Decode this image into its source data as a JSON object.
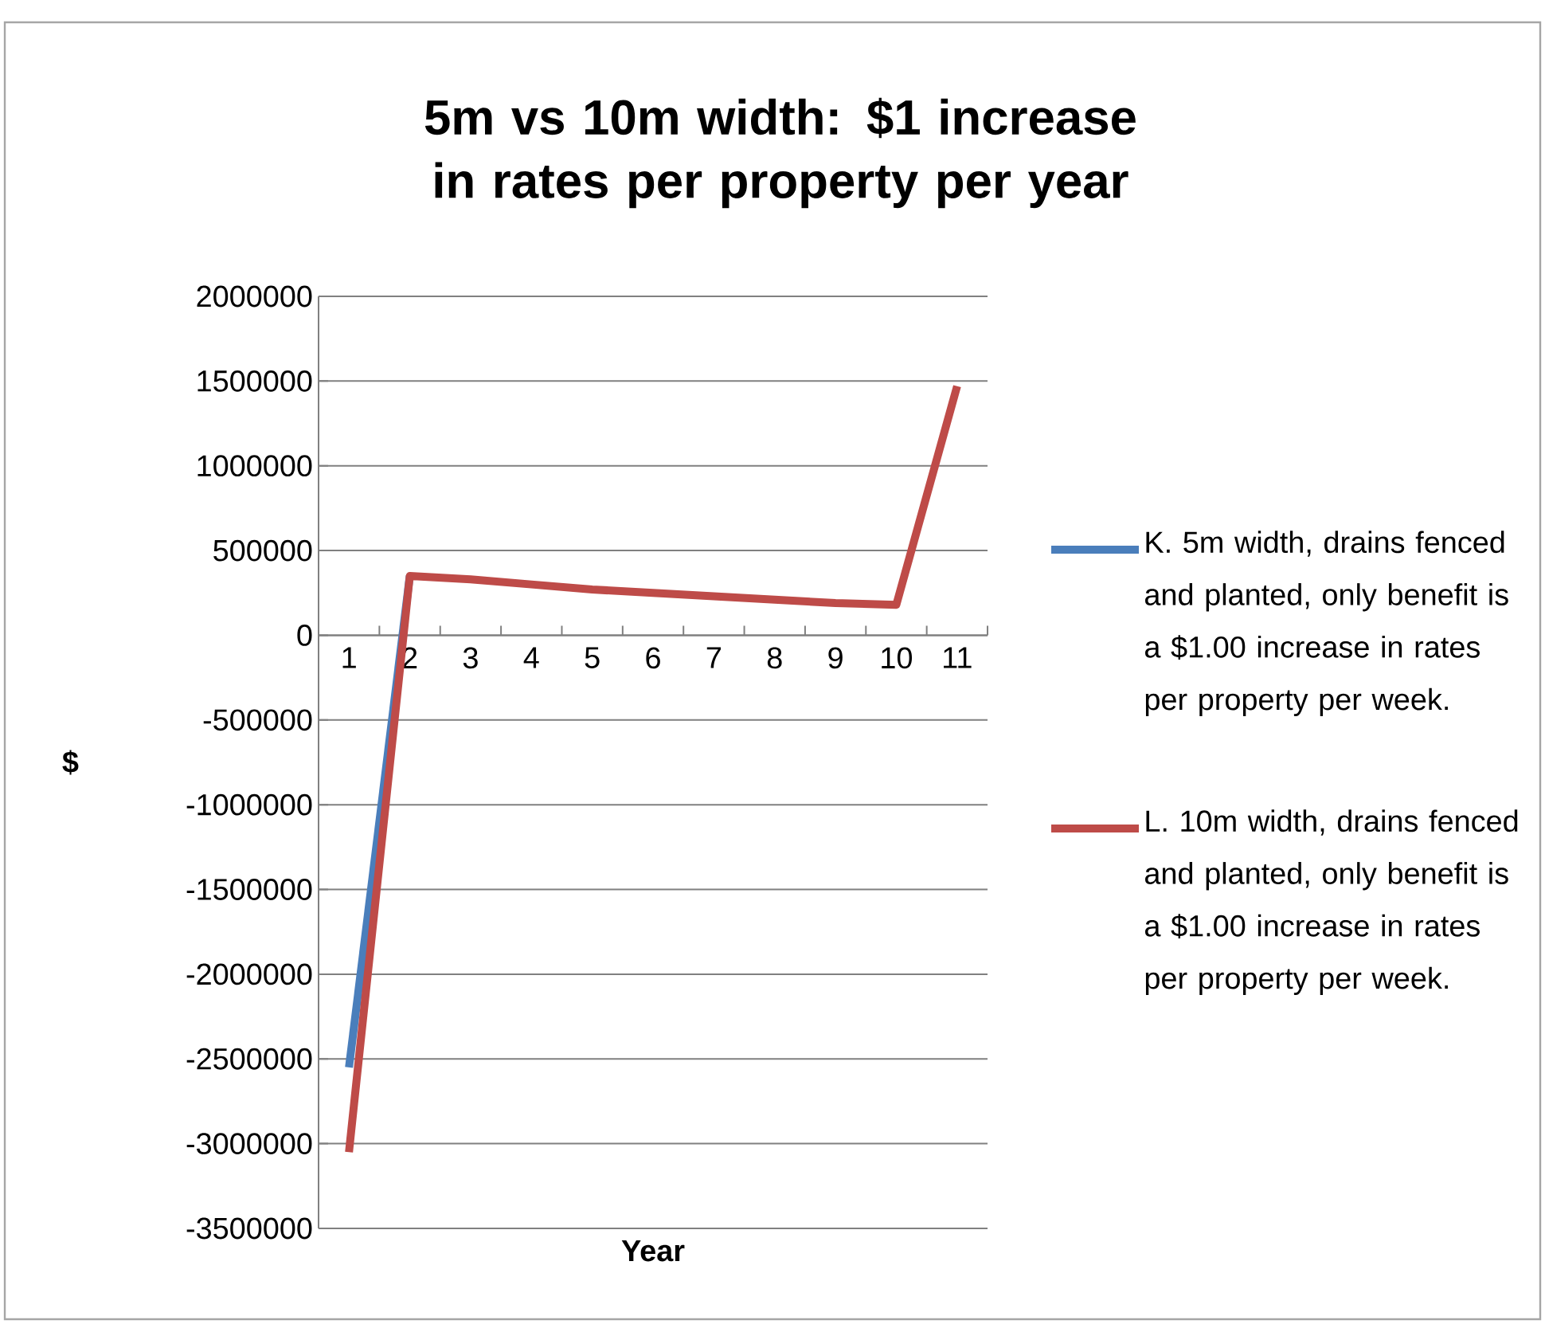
{
  "chart_data": {
    "type": "line",
    "title": "5m vs 10m width: $1 increase in rates per property per year",
    "xlabel": "Year",
    "ylabel": "$",
    "categories": [
      "1",
      "2",
      "3",
      "4",
      "5",
      "6",
      "7",
      "8",
      "9",
      "10",
      "11"
    ],
    "series": [
      {
        "name": "K. 5m width, drains fenced and planted, only benefit is a $1.00 increase in rates per property per week.",
        "color": "#4a7ebb",
        "values": [
          -2550000,
          350000,
          null,
          null,
          null,
          null,
          null,
          null,
          null,
          null,
          null
        ]
      },
      {
        "name": "L. 10m width, drains fenced and planted, only benefit is a $1.00 increase in rates per property per week.",
        "color": "#be4b48",
        "values": [
          -3050000,
          350000,
          330000,
          300000,
          270000,
          250000,
          230000,
          210000,
          190000,
          180000,
          1470000
        ]
      }
    ],
    "ylim": [
      -3500000,
      2000000
    ],
    "yticks": [
      -3500000,
      -3000000,
      -2500000,
      -2000000,
      -1500000,
      -1000000,
      -500000,
      0,
      500000,
      1000000,
      1500000,
      2000000
    ],
    "grid": "y",
    "legend": "right"
  }
}
